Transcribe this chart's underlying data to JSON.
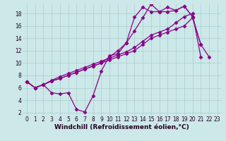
{
  "background_color": "#cce8e8",
  "grid_color": "#aacece",
  "line_color": "#880088",
  "marker": "D",
  "markersize": 2.5,
  "linewidth": 0.9,
  "xlabel": "Windchill (Refroidissement éolien,°C)",
  "xlabel_fontsize": 6.5,
  "tick_fontsize": 5.5,
  "xlim": [
    -0.5,
    23.5
  ],
  "ylim": [
    1.5,
    19.5
  ],
  "yticks": [
    2,
    4,
    6,
    8,
    10,
    12,
    14,
    16,
    18
  ],
  "xticks": [
    0,
    1,
    2,
    3,
    4,
    5,
    6,
    7,
    8,
    9,
    10,
    11,
    12,
    13,
    14,
    15,
    16,
    17,
    18,
    19,
    20,
    21,
    22,
    23
  ],
  "series1_x": [
    0,
    1,
    2,
    3,
    4,
    5,
    6,
    7,
    8,
    9,
    10,
    11,
    12,
    13,
    14,
    15,
    16,
    17,
    18,
    19,
    20,
    21,
    22,
    23
  ],
  "series1_y": [
    7.0,
    6.0,
    6.5,
    5.2,
    5.0,
    5.2,
    2.5,
    2.1,
    4.7,
    8.7,
    11.2,
    11.5,
    13.2,
    17.4,
    19.0,
    18.3,
    18.3,
    19.0,
    18.5,
    19.2,
    17.5,
    null,
    null,
    null
  ],
  "series2_x": [
    0,
    1,
    2,
    3,
    4,
    5,
    6,
    7,
    8,
    9,
    10,
    11,
    12,
    13,
    14,
    15,
    16,
    17,
    18,
    19,
    20,
    21,
    22,
    23
  ],
  "series2_y": [
    7.0,
    6.0,
    6.5,
    7.1,
    7.5,
    8.0,
    8.5,
    9.0,
    9.5,
    10.0,
    10.5,
    11.0,
    11.5,
    12.0,
    13.0,
    14.0,
    14.5,
    15.0,
    15.5,
    16.0,
    17.3,
    13.0,
    11.0,
    null
  ],
  "series3_x": [
    0,
    1,
    2,
    3,
    4,
    5,
    6,
    7,
    8,
    9,
    10,
    11,
    12,
    13,
    14,
    15,
    16,
    17,
    18,
    19,
    20,
    21,
    22,
    23
  ],
  "series3_y": [
    7.0,
    6.0,
    6.5,
    7.1,
    7.5,
    8.0,
    8.5,
    9.0,
    9.5,
    10.0,
    11.0,
    12.0,
    13.2,
    15.2,
    17.3,
    19.5,
    18.3,
    18.3,
    18.5,
    19.2,
    17.5,
    13.0,
    null,
    null
  ],
  "series4_x": [
    0,
    1,
    2,
    3,
    4,
    5,
    6,
    7,
    8,
    9,
    10,
    11,
    12,
    13,
    14,
    15,
    16,
    17,
    18,
    19,
    20,
    21,
    22,
    23
  ],
  "series4_y": [
    7.0,
    6.0,
    6.5,
    7.2,
    7.8,
    8.3,
    8.8,
    9.3,
    9.8,
    10.3,
    10.8,
    11.3,
    11.8,
    12.5,
    13.5,
    14.5,
    15.0,
    15.5,
    16.5,
    17.5,
    18.0,
    11.0,
    null,
    null
  ]
}
